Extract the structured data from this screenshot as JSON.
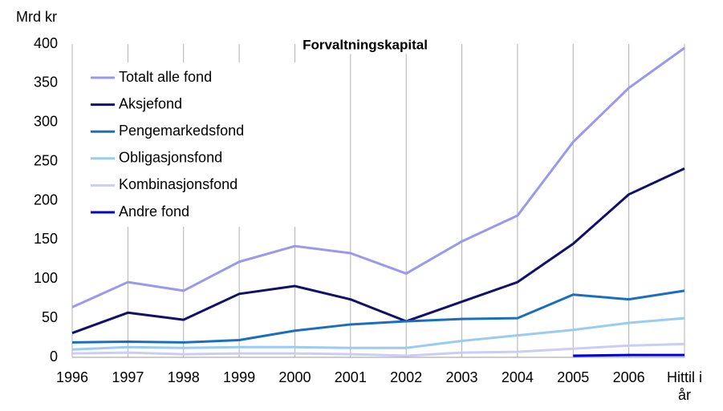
{
  "chart_data": {
    "type": "line",
    "title": "Forvaltningskapital",
    "y_label": "Mrd kr",
    "categories": [
      "1996",
      "1997",
      "1998",
      "1999",
      "2000",
      "2001",
      "2002",
      "2003",
      "2004",
      "2005",
      "2006",
      "Hittil i år"
    ],
    "series": [
      {
        "name": "Totalt alle fond",
        "color": "#9999ee",
        "values": [
          64,
          96,
          85,
          122,
          142,
          133,
          107,
          148,
          181,
          275,
          344,
          395
        ]
      },
      {
        "name": "Aksjefond",
        "color": "#10106a",
        "values": [
          31,
          57,
          48,
          81,
          91,
          74,
          46,
          71,
          96,
          145,
          208,
          241
        ]
      },
      {
        "name": "Pengemarkedsfond",
        "color": "#1a6ebf",
        "values": [
          19,
          20,
          19,
          22,
          34,
          42,
          46,
          49,
          50,
          80,
          74,
          85
        ]
      },
      {
        "name": "Obligasjonsfond",
        "color": "#99ccf0",
        "values": [
          10,
          13,
          12,
          13,
          13,
          12,
          12,
          21,
          28,
          35,
          44,
          50
        ]
      },
      {
        "name": "Kombinasjonsfond",
        "color": "#ccccf5",
        "values": [
          5,
          6,
          4,
          5,
          5,
          4,
          2,
          6,
          7,
          11,
          15,
          17
        ]
      },
      {
        "name": "Andre fond",
        "color": "#0000cc",
        "values": [
          null,
          null,
          null,
          null,
          null,
          null,
          null,
          null,
          null,
          2,
          3,
          3
        ]
      }
    ],
    "ylim": [
      0,
      400
    ],
    "yticks": [
      0,
      50,
      100,
      150,
      200,
      250,
      300,
      350,
      400
    ],
    "grid": "vertical",
    "legend": "upper left"
  }
}
